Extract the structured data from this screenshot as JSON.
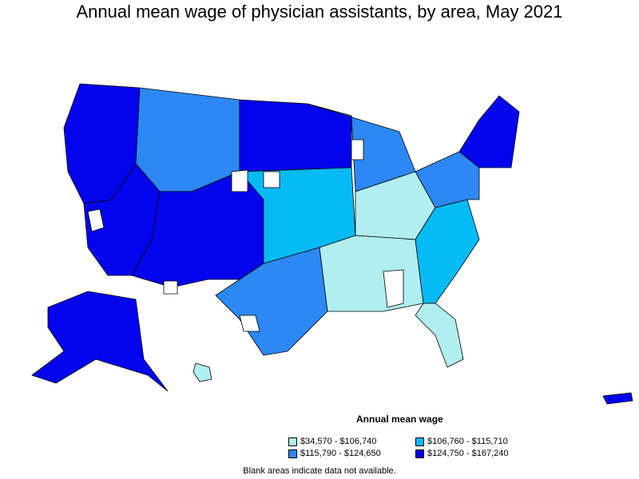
{
  "title": "Annual mean wage of physician assistants, by area, May 2021",
  "legend": {
    "title": "Annual mean wage",
    "bins": [
      {
        "label": "$34,570 - $106,740",
        "color": "#b0eef0"
      },
      {
        "label": "$106,760 - $115,710",
        "color": "#05bbf5"
      },
      {
        "label": "$115,790 - $124,650",
        "color": "#2d88f5"
      },
      {
        "label": "$124,750 - $167,240",
        "color": "#0303ee"
      }
    ]
  },
  "footnote": "Blank areas indicate data not available.",
  "map": {
    "regions": [
      {
        "name": "pacific-northwest",
        "bin": 3
      },
      {
        "name": "interior-northwest",
        "bin": 2
      },
      {
        "name": "northern-plains",
        "bin": 3
      },
      {
        "name": "california-nevada",
        "bin": 3
      },
      {
        "name": "southwest",
        "bin": 3
      },
      {
        "name": "central-plains",
        "bin": 1
      },
      {
        "name": "texas",
        "bin": 2
      },
      {
        "name": "great-lakes",
        "bin": 2
      },
      {
        "name": "ohio-valley",
        "bin": 0
      },
      {
        "name": "deep-south",
        "bin": 0
      },
      {
        "name": "southeast",
        "bin": 1
      },
      {
        "name": "mid-atlantic",
        "bin": 2
      },
      {
        "name": "new-england",
        "bin": 3
      },
      {
        "name": "florida",
        "bin": 0
      },
      {
        "name": "alaska",
        "bin": 3
      },
      {
        "name": "hawaii",
        "bin": 0
      },
      {
        "name": "puerto-rico",
        "bin": 3
      }
    ]
  }
}
